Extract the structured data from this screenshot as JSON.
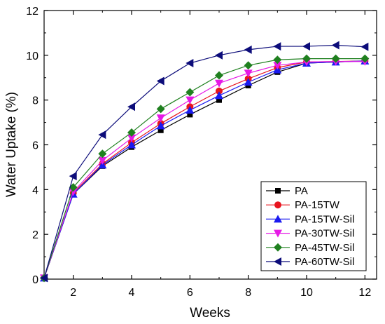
{
  "chart_data": {
    "type": "line",
    "title": "",
    "xlabel": "Weeks",
    "ylabel": "Water Uptake (%)",
    "xlim": [
      1,
      12.4
    ],
    "ylim": [
      0,
      12
    ],
    "x_ticks": [
      2,
      4,
      6,
      8,
      10,
      12
    ],
    "y_ticks": [
      0,
      2,
      4,
      6,
      8,
      10,
      12
    ],
    "x_tick_labels": [
      "2",
      "4",
      "6",
      "8",
      "10",
      "12"
    ],
    "y_tick_labels": [
      "0",
      "2",
      "4",
      "6",
      "8",
      "10",
      "12"
    ],
    "grid": false,
    "legend_position": "bottom-right",
    "x": [
      1,
      2,
      3,
      4,
      5,
      6,
      7,
      8,
      9,
      10,
      11,
      12
    ],
    "series": [
      {
        "name": "PA",
        "color": "#000000",
        "marker": "square",
        "values": [
          0.05,
          3.8,
          5.05,
          5.9,
          6.65,
          7.35,
          8.0,
          8.65,
          9.25,
          9.65,
          9.7,
          9.75
        ]
      },
      {
        "name": "PA-15TW",
        "color": "#e8141e",
        "marker": "circle",
        "values": [
          0.05,
          3.85,
          5.15,
          6.1,
          6.95,
          7.7,
          8.4,
          8.95,
          9.45,
          9.7,
          9.72,
          9.75
        ]
      },
      {
        "name": "PA-15TW-Sil",
        "color": "#1a1af0",
        "marker": "triangle-up",
        "values": [
          0.05,
          3.8,
          5.1,
          6.0,
          6.85,
          7.55,
          8.2,
          8.8,
          9.35,
          9.65,
          9.7,
          9.75
        ]
      },
      {
        "name": "PA-30TW-Sil",
        "color": "#e619e6",
        "marker": "triangle-down",
        "values": [
          0.05,
          3.9,
          5.3,
          6.3,
          7.2,
          8.0,
          8.75,
          9.2,
          9.55,
          9.7,
          9.72,
          9.72
        ]
      },
      {
        "name": "PA-45TW-Sil",
        "color": "#1f801f",
        "marker": "diamond",
        "values": [
          0.05,
          4.1,
          5.6,
          6.55,
          7.6,
          8.35,
          9.1,
          9.55,
          9.8,
          9.85,
          9.85,
          9.85
        ]
      },
      {
        "name": "PA-60TW-Sil",
        "color": "#0c0c7a",
        "marker": "triangle-left",
        "values": [
          0.05,
          4.6,
          6.45,
          7.7,
          8.85,
          9.65,
          10.0,
          10.25,
          10.4,
          10.4,
          10.45,
          10.38
        ]
      }
    ]
  }
}
